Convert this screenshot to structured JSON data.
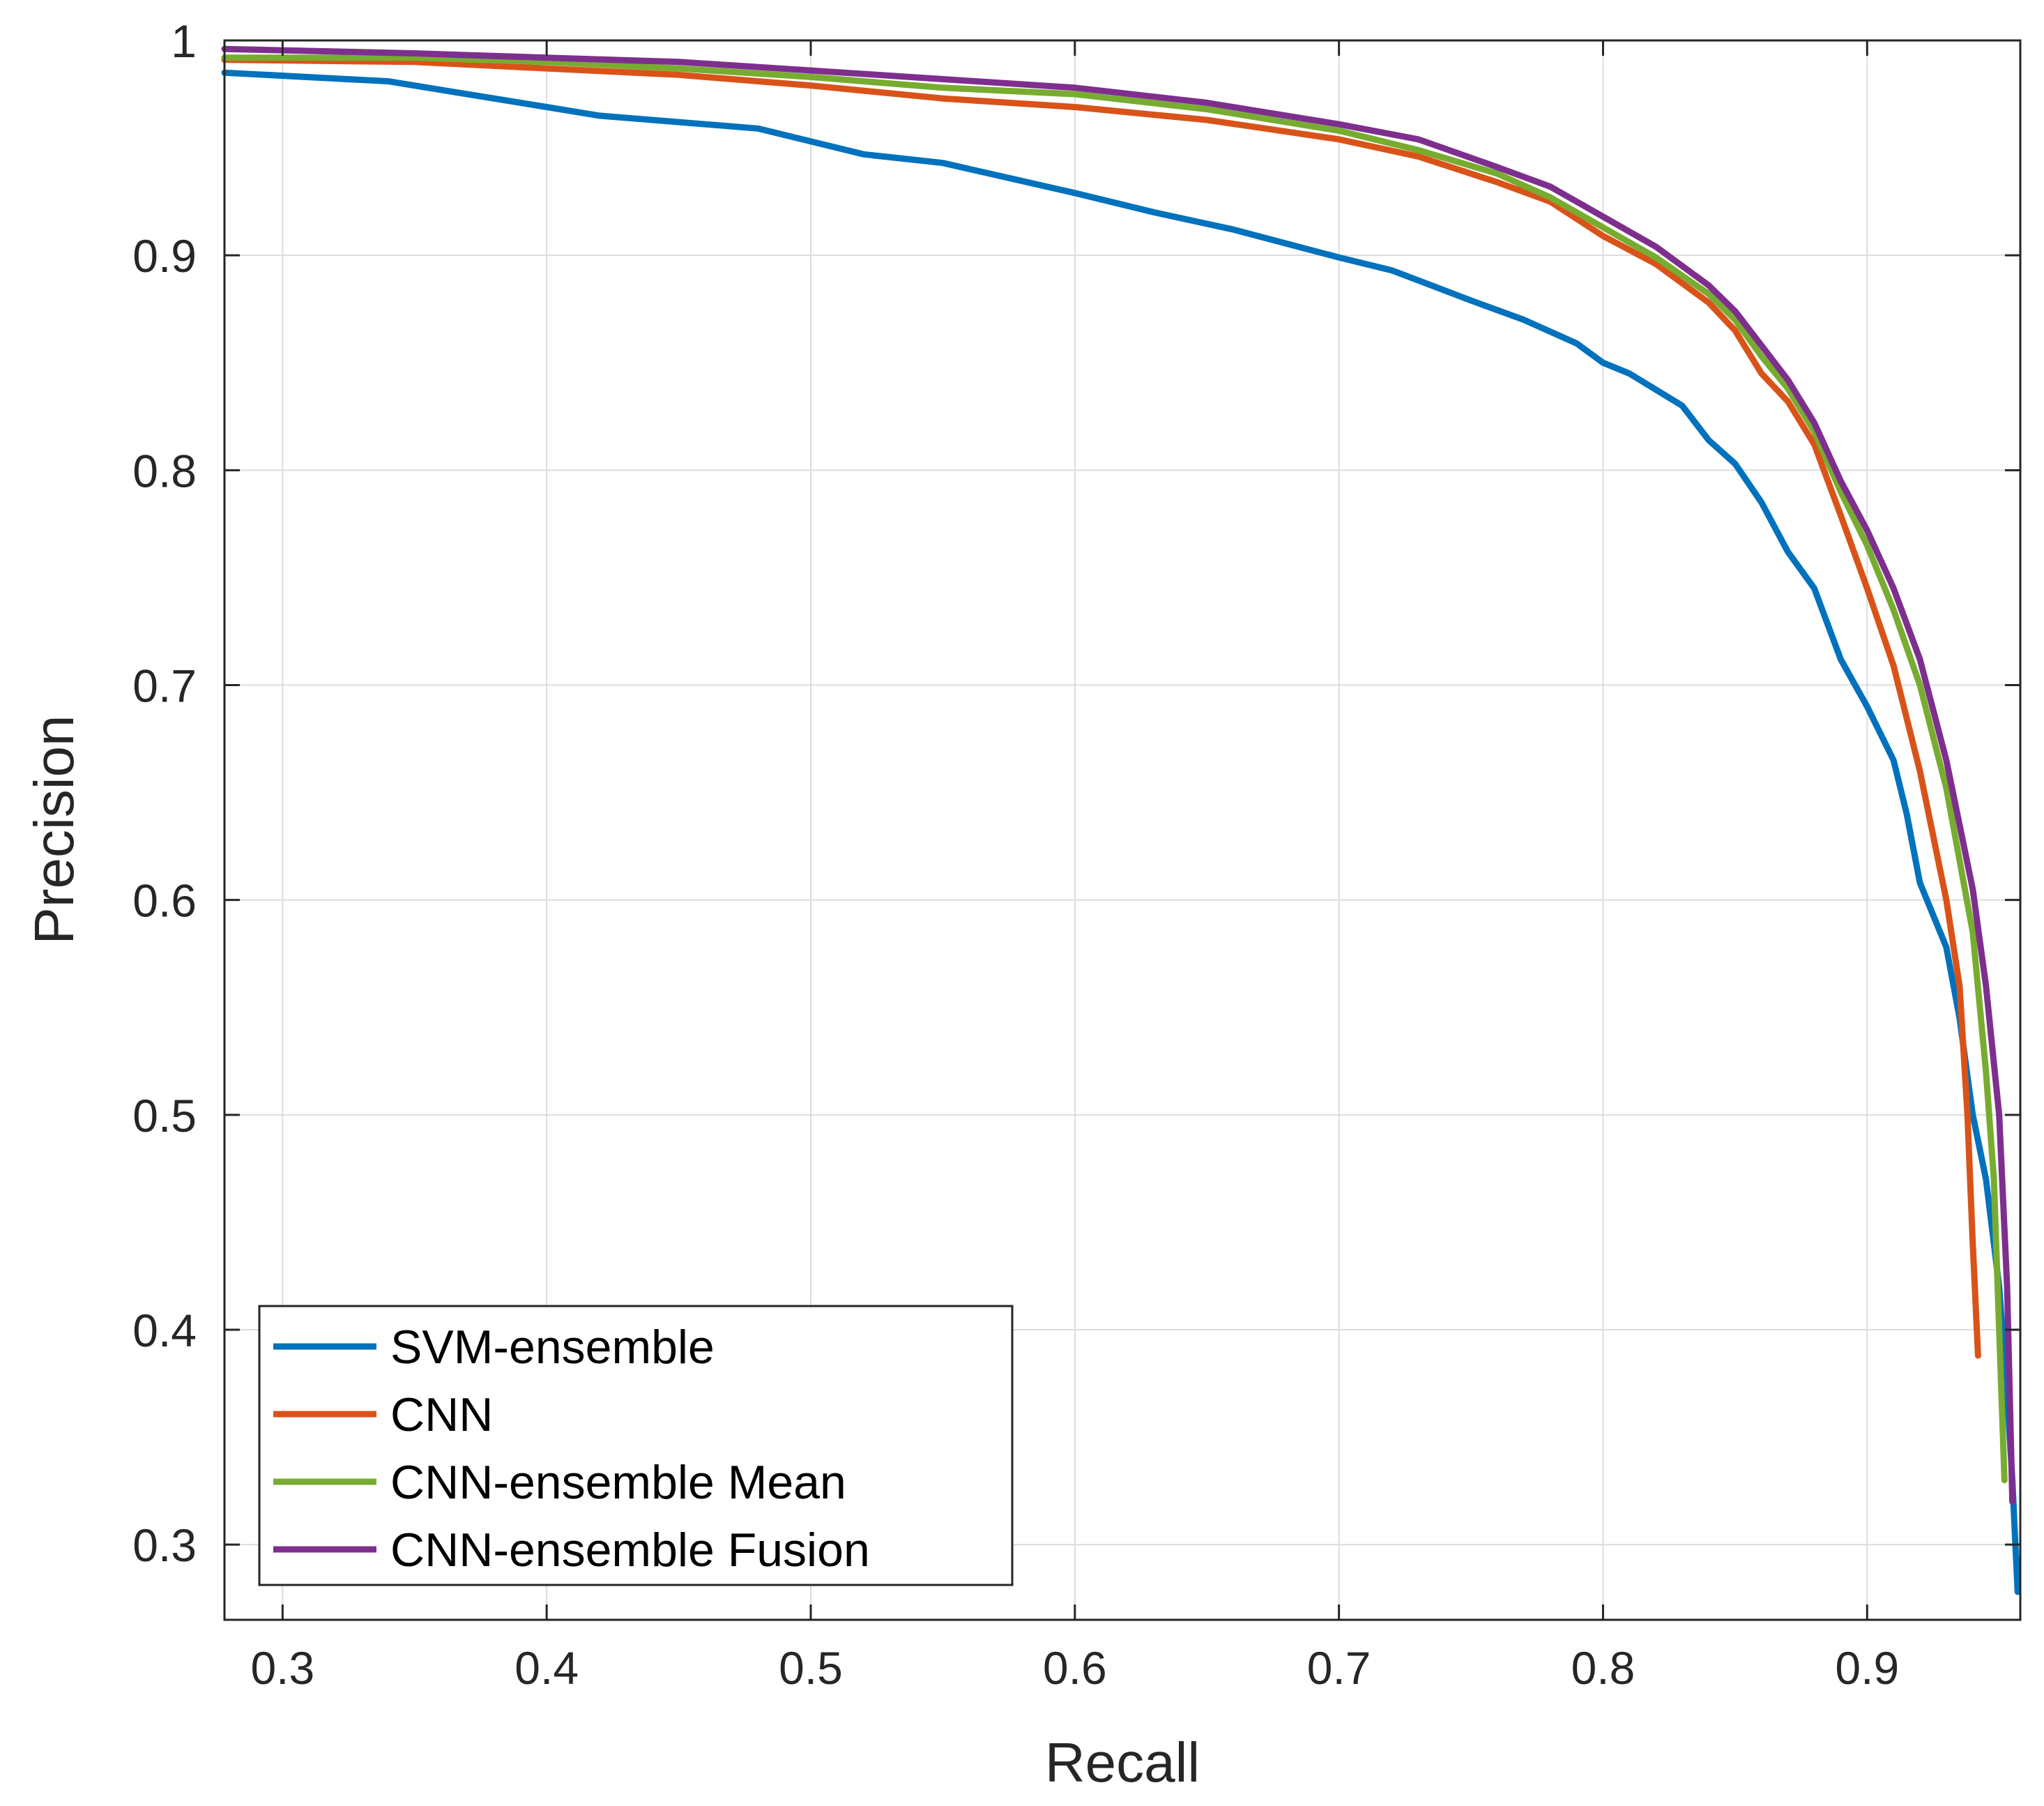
{
  "chart_data": {
    "type": "line",
    "title": "",
    "xlabel": "Recall",
    "ylabel": "Precision",
    "xlim": [
      0.278,
      0.958
    ],
    "ylim": [
      0.265,
      1.0
    ],
    "grid": true,
    "legend_position": "bottom-left",
    "xticks": [
      {
        "value": 0.3,
        "label": "0.3"
      },
      {
        "value": 0.4,
        "label": "0.4"
      },
      {
        "value": 0.5,
        "label": "0.5"
      },
      {
        "value": 0.6,
        "label": "0.6"
      },
      {
        "value": 0.7,
        "label": "0.7"
      },
      {
        "value": 0.8,
        "label": "0.8"
      },
      {
        "value": 0.9,
        "label": "0.9"
      }
    ],
    "yticks": [
      {
        "value": 0.3,
        "label": "0.3"
      },
      {
        "value": 0.4,
        "label": "0.4"
      },
      {
        "value": 0.5,
        "label": "0.5"
      },
      {
        "value": 0.6,
        "label": "0.6"
      },
      {
        "value": 0.7,
        "label": "0.7"
      },
      {
        "value": 0.8,
        "label": "0.8"
      },
      {
        "value": 0.9,
        "label": "0.9"
      },
      {
        "value": 1.0,
        "label": "1"
      }
    ],
    "series": [
      {
        "name": "SVM-ensemble",
        "color": "#0072BD",
        "points": [
          [
            0.278,
            0.985
          ],
          [
            0.34,
            0.981
          ],
          [
            0.4,
            0.969
          ],
          [
            0.42,
            0.965
          ],
          [
            0.48,
            0.959
          ],
          [
            0.52,
            0.947
          ],
          [
            0.55,
            0.943
          ],
          [
            0.6,
            0.929
          ],
          [
            0.63,
            0.92
          ],
          [
            0.66,
            0.912
          ],
          [
            0.7,
            0.899
          ],
          [
            0.72,
            0.893
          ],
          [
            0.75,
            0.879
          ],
          [
            0.77,
            0.87
          ],
          [
            0.79,
            0.859
          ],
          [
            0.8,
            0.85
          ],
          [
            0.81,
            0.845
          ],
          [
            0.83,
            0.83
          ],
          [
            0.84,
            0.814
          ],
          [
            0.85,
            0.803
          ],
          [
            0.86,
            0.785
          ],
          [
            0.87,
            0.762
          ],
          [
            0.88,
            0.745
          ],
          [
            0.89,
            0.712
          ],
          [
            0.9,
            0.69
          ],
          [
            0.91,
            0.665
          ],
          [
            0.915,
            0.64
          ],
          [
            0.92,
            0.608
          ],
          [
            0.93,
            0.578
          ],
          [
            0.935,
            0.545
          ],
          [
            0.94,
            0.5
          ],
          [
            0.945,
            0.47
          ],
          [
            0.95,
            0.42
          ],
          [
            0.953,
            0.37
          ],
          [
            0.955,
            0.33
          ],
          [
            0.957,
            0.278
          ]
        ]
      },
      {
        "name": "CNN",
        "color": "#D95319",
        "points": [
          [
            0.278,
            0.991
          ],
          [
            0.35,
            0.99
          ],
          [
            0.4,
            0.987
          ],
          [
            0.45,
            0.984
          ],
          [
            0.5,
            0.979
          ],
          [
            0.55,
            0.973
          ],
          [
            0.6,
            0.969
          ],
          [
            0.65,
            0.963
          ],
          [
            0.7,
            0.954
          ],
          [
            0.73,
            0.946
          ],
          [
            0.76,
            0.934
          ],
          [
            0.78,
            0.925
          ],
          [
            0.8,
            0.909
          ],
          [
            0.82,
            0.896
          ],
          [
            0.84,
            0.878
          ],
          [
            0.85,
            0.865
          ],
          [
            0.86,
            0.845
          ],
          [
            0.87,
            0.832
          ],
          [
            0.88,
            0.812
          ],
          [
            0.89,
            0.779
          ],
          [
            0.9,
            0.745
          ],
          [
            0.91,
            0.709
          ],
          [
            0.92,
            0.66
          ],
          [
            0.93,
            0.6
          ],
          [
            0.935,
            0.56
          ],
          [
            0.938,
            0.5
          ],
          [
            0.94,
            0.44
          ],
          [
            0.942,
            0.388
          ]
        ]
      },
      {
        "name": "CNN-ensemble Mean",
        "color": "#77AC30",
        "points": [
          [
            0.278,
            0.992
          ],
          [
            0.35,
            0.992
          ],
          [
            0.4,
            0.99
          ],
          [
            0.45,
            0.987
          ],
          [
            0.5,
            0.983
          ],
          [
            0.55,
            0.978
          ],
          [
            0.6,
            0.975
          ],
          [
            0.65,
            0.968
          ],
          [
            0.7,
            0.958
          ],
          [
            0.73,
            0.949
          ],
          [
            0.76,
            0.938
          ],
          [
            0.78,
            0.927
          ],
          [
            0.8,
            0.913
          ],
          [
            0.82,
            0.899
          ],
          [
            0.84,
            0.882
          ],
          [
            0.85,
            0.87
          ],
          [
            0.86,
            0.853
          ],
          [
            0.87,
            0.838
          ],
          [
            0.88,
            0.818
          ],
          [
            0.89,
            0.79
          ],
          [
            0.9,
            0.765
          ],
          [
            0.91,
            0.735
          ],
          [
            0.92,
            0.7
          ],
          [
            0.93,
            0.652
          ],
          [
            0.94,
            0.585
          ],
          [
            0.945,
            0.52
          ],
          [
            0.948,
            0.47
          ],
          [
            0.95,
            0.4
          ],
          [
            0.952,
            0.33
          ]
        ]
      },
      {
        "name": "CNN-ensemble Fusion",
        "color": "#7E2F8E",
        "points": [
          [
            0.278,
            0.996
          ],
          [
            0.35,
            0.994
          ],
          [
            0.4,
            0.992
          ],
          [
            0.45,
            0.99
          ],
          [
            0.5,
            0.986
          ],
          [
            0.55,
            0.982
          ],
          [
            0.6,
            0.978
          ],
          [
            0.65,
            0.971
          ],
          [
            0.7,
            0.961
          ],
          [
            0.73,
            0.954
          ],
          [
            0.76,
            0.941
          ],
          [
            0.78,
            0.932
          ],
          [
            0.8,
            0.918
          ],
          [
            0.82,
            0.904
          ],
          [
            0.84,
            0.886
          ],
          [
            0.85,
            0.874
          ],
          [
            0.86,
            0.858
          ],
          [
            0.87,
            0.842
          ],
          [
            0.88,
            0.822
          ],
          [
            0.89,
            0.795
          ],
          [
            0.9,
            0.772
          ],
          [
            0.91,
            0.745
          ],
          [
            0.92,
            0.712
          ],
          [
            0.93,
            0.665
          ],
          [
            0.94,
            0.605
          ],
          [
            0.945,
            0.56
          ],
          [
            0.95,
            0.5
          ],
          [
            0.953,
            0.42
          ],
          [
            0.955,
            0.32
          ]
        ]
      }
    ]
  }
}
